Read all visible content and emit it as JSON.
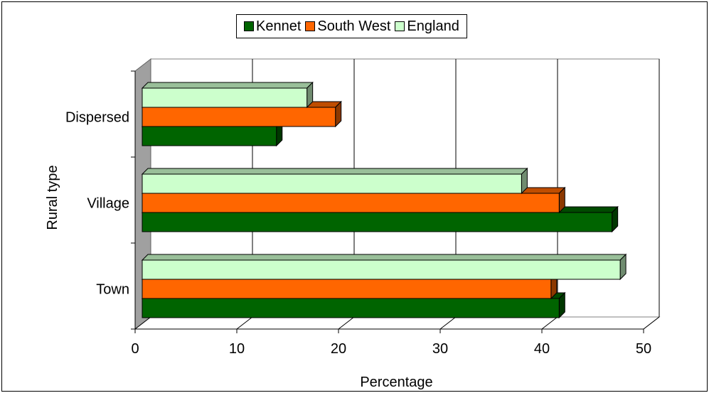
{
  "chart_data": {
    "type": "bar",
    "orientation": "horizontal",
    "style": "3d",
    "categories": [
      "Town",
      "Village",
      "Dispersed"
    ],
    "series": [
      {
        "name": "Kennet",
        "values": [
          41,
          46.2,
          13.2
        ],
        "color": "#006400"
      },
      {
        "name": "South West",
        "values": [
          40.2,
          41,
          19
        ],
        "color": "#ff6600"
      },
      {
        "name": "England",
        "values": [
          47,
          37.3,
          16.2
        ],
        "color": "#ccffcc"
      }
    ],
    "xlabel": "Percentage",
    "ylabel": "Rural type",
    "xlim": [
      0,
      50
    ],
    "xticks": [
      "0",
      "10",
      "20",
      "30",
      "40",
      "50"
    ],
    "grid": true,
    "legend_position": "top"
  }
}
